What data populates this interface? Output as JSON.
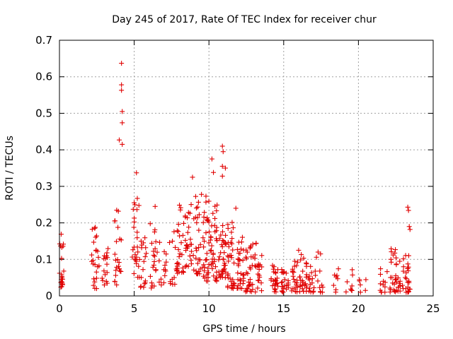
{
  "chart_data": {
    "type": "scatter",
    "title": "Day 245 of 2017, Rate Of TEC Index for receiver chur",
    "xlabel": "GPS time / hours",
    "ylabel": "ROTI / TECUs",
    "xlim": [
      0,
      25
    ],
    "ylim": [
      0,
      0.7
    ],
    "xticks": [
      "0",
      "5",
      "10",
      "15",
      "20",
      "25"
    ],
    "yticks": [
      "0",
      "0.1",
      "0.2",
      "0.3",
      "0.4",
      "0.5",
      "0.6",
      "0.7"
    ],
    "grid": true,
    "marker": "plus",
    "color": "#e00000",
    "clusters": [
      {
        "x": 0.05,
        "ymin": 0.02,
        "ymax": 0.17,
        "n": 28
      },
      {
        "x": 2.4,
        "ymin": 0.02,
        "ymax": 0.2,
        "n": 24
      },
      {
        "x": 3.1,
        "ymin": 0.03,
        "ymax": 0.13,
        "n": 16
      },
      {
        "x": 3.9,
        "ymin": 0.03,
        "ymax": 0.24,
        "n": 22
      },
      {
        "x": 5.1,
        "ymin": 0.05,
        "ymax": 0.27,
        "n": 26
      },
      {
        "x": 5.6,
        "ymin": 0.02,
        "ymax": 0.17,
        "n": 18
      },
      {
        "x": 6.3,
        "ymin": 0.02,
        "ymax": 0.2,
        "n": 20
      },
      {
        "x": 6.9,
        "ymin": 0.03,
        "ymax": 0.15,
        "n": 14
      },
      {
        "x": 7.6,
        "ymin": 0.03,
        "ymax": 0.18,
        "n": 12
      },
      {
        "x": 8.1,
        "ymin": 0.06,
        "ymax": 0.26,
        "n": 26
      },
      {
        "x": 8.6,
        "ymin": 0.08,
        "ymax": 0.26,
        "n": 26
      },
      {
        "x": 9.2,
        "ymin": 0.06,
        "ymax": 0.28,
        "n": 28
      },
      {
        "x": 9.8,
        "ymin": 0.04,
        "ymax": 0.26,
        "n": 34
      },
      {
        "x": 10.3,
        "ymin": 0.04,
        "ymax": 0.26,
        "n": 36
      },
      {
        "x": 10.9,
        "ymin": 0.05,
        "ymax": 0.2,
        "n": 34
      },
      {
        "x": 11.5,
        "ymin": 0.02,
        "ymax": 0.22,
        "n": 34
      },
      {
        "x": 12.1,
        "ymin": 0.02,
        "ymax": 0.17,
        "n": 32
      },
      {
        "x": 12.7,
        "ymin": 0.01,
        "ymax": 0.15,
        "n": 30
      },
      {
        "x": 13.3,
        "ymin": 0.01,
        "ymax": 0.15,
        "n": 22
      },
      {
        "x": 14.4,
        "ymin": 0.01,
        "ymax": 0.09,
        "n": 24
      },
      {
        "x": 15.1,
        "ymin": 0.01,
        "ymax": 0.08,
        "n": 22
      },
      {
        "x": 15.7,
        "ymin": 0.01,
        "ymax": 0.1,
        "n": 22
      },
      {
        "x": 16.3,
        "ymin": 0.01,
        "ymax": 0.12,
        "n": 26
      },
      {
        "x": 16.9,
        "ymin": 0.01,
        "ymax": 0.09,
        "n": 16
      },
      {
        "x": 17.4,
        "ymin": 0.01,
        "ymax": 0.12,
        "n": 10
      },
      {
        "x": 18.5,
        "ymin": 0.01,
        "ymax": 0.08,
        "n": 8
      },
      {
        "x": 19.4,
        "ymin": 0.01,
        "ymax": 0.08,
        "n": 8
      },
      {
        "x": 20.3,
        "ymin": 0.01,
        "ymax": 0.06,
        "n": 6
      },
      {
        "x": 21.7,
        "ymin": 0.01,
        "ymax": 0.08,
        "n": 12
      },
      {
        "x": 22.3,
        "ymin": 0.01,
        "ymax": 0.13,
        "n": 22
      },
      {
        "x": 22.7,
        "ymin": 0.01,
        "ymax": 0.1,
        "n": 14
      },
      {
        "x": 23.2,
        "ymin": 0.01,
        "ymax": 0.13,
        "n": 26
      }
    ],
    "points": [
      [
        4.0,
        0.427
      ],
      [
        4.15,
        0.637
      ],
      [
        4.15,
        0.578
      ],
      [
        4.15,
        0.563
      ],
      [
        4.2,
        0.505
      ],
      [
        4.2,
        0.474
      ],
      [
        4.2,
        0.415
      ],
      [
        5.15,
        0.337
      ],
      [
        6.4,
        0.245
      ],
      [
        8.9,
        0.325
      ],
      [
        10.2,
        0.375
      ],
      [
        10.3,
        0.338
      ],
      [
        10.9,
        0.41
      ],
      [
        10.95,
        0.395
      ],
      [
        10.9,
        0.355
      ],
      [
        11.1,
        0.35
      ],
      [
        10.9,
        0.328
      ],
      [
        9.5,
        0.278
      ],
      [
        9.8,
        0.273
      ],
      [
        11.8,
        0.24
      ],
      [
        16.0,
        0.125
      ],
      [
        17.3,
        0.12
      ],
      [
        23.3,
        0.243
      ],
      [
        23.35,
        0.234
      ],
      [
        23.4,
        0.19
      ],
      [
        23.45,
        0.182
      ]
    ]
  }
}
